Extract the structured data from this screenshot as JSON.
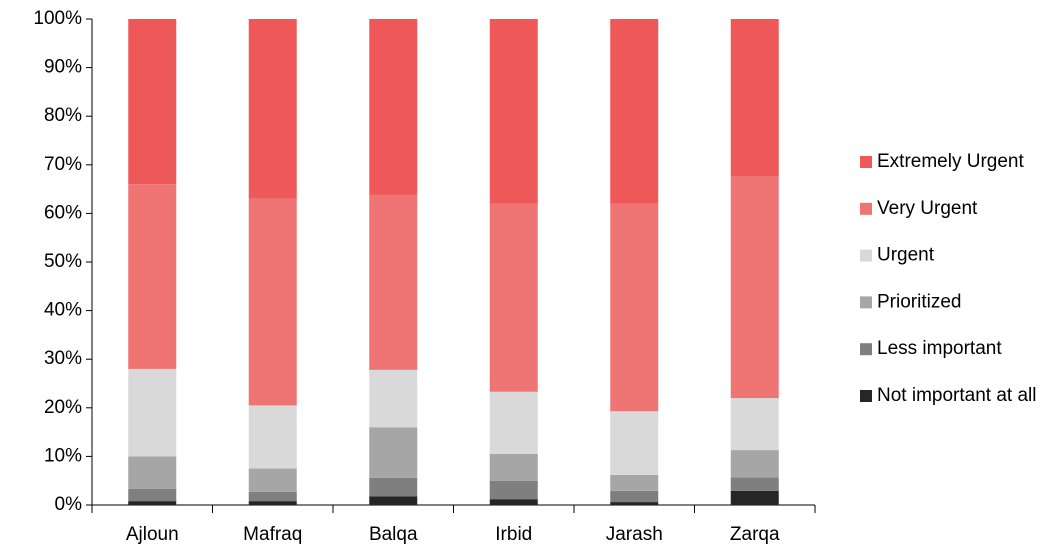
{
  "chart_data": {
    "type": "stacked_bar",
    "categories": [
      "Ajloun",
      "Mafraq",
      "Balqa",
      "Irbid",
      "Jarash",
      "Zarqa"
    ],
    "series": [
      {
        "name": "Not important at all",
        "color": "#262626",
        "values": [
          0.8,
          0.8,
          1.8,
          1.2,
          0.6,
          2.9
        ]
      },
      {
        "name": "Less important",
        "color": "#7f7f7f",
        "values": [
          2.5,
          1.9,
          3.8,
          3.8,
          2.3,
          2.8
        ]
      },
      {
        "name": "Prioritized",
        "color": "#a6a6a6",
        "values": [
          6.7,
          4.8,
          10.4,
          5.5,
          3.3,
          5.6
        ]
      },
      {
        "name": "Urgent",
        "color": "#d9d9d9",
        "values": [
          18,
          13,
          11.8,
          12.8,
          13.1,
          10.7
        ]
      },
      {
        "name": "Very Urgent",
        "color": "#ef7575",
        "values": [
          38,
          42.5,
          36,
          38.7,
          42.7,
          45.7
        ]
      },
      {
        "name": "Extremely Urgent",
        "color": "#ef5858",
        "values": [
          34,
          37,
          36.2,
          38,
          38,
          32.3
        ]
      }
    ],
    "ylim": [
      0,
      100
    ],
    "yticks": [
      {
        "value": 0,
        "label": "0%"
      },
      {
        "value": 10,
        "label": "10%"
      },
      {
        "value": 20,
        "label": "20%"
      },
      {
        "value": 30,
        "label": "30%"
      },
      {
        "value": 40,
        "label": "40%"
      },
      {
        "value": 50,
        "label": "50%"
      },
      {
        "value": 60,
        "label": "60%"
      },
      {
        "value": 70,
        "label": "70%"
      },
      {
        "value": 80,
        "label": "80%"
      },
      {
        "value": 90,
        "label": "90%"
      },
      {
        "value": 100,
        "label": "100%"
      }
    ],
    "legend": "right"
  }
}
